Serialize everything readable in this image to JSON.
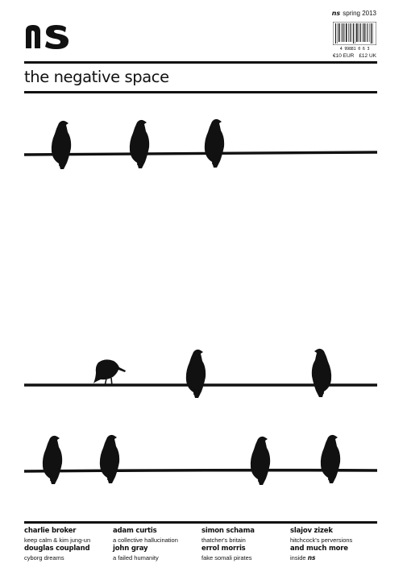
{
  "masthead": {
    "issue_mark": "ns",
    "issue": "spring 2013",
    "title": "the negative space",
    "barcode_number": "4 99881 0 6 3",
    "price_eur": "€10 EUR",
    "price_uk": "£12 UK"
  },
  "contents": [
    [
      {
        "name": "charlie broker",
        "sub": "keep calm & kim jung-un"
      },
      {
        "name": "douglas coupland",
        "sub": "cyborg dreams"
      }
    ],
    [
      {
        "name": "adam curtis",
        "sub": "a collective hallucination"
      },
      {
        "name": "john gray",
        "sub": "a failed humanity"
      }
    ],
    [
      {
        "name": "simon schama",
        "sub": "thatcher's britain"
      },
      {
        "name": "errol morris",
        "sub": "fake somali pirates"
      }
    ],
    [
      {
        "name": "slajov zizek",
        "sub": "hitchcock's perversions"
      },
      {
        "name": "and much more",
        "sub": "inside",
        "sub_mark": "ns"
      }
    ]
  ]
}
